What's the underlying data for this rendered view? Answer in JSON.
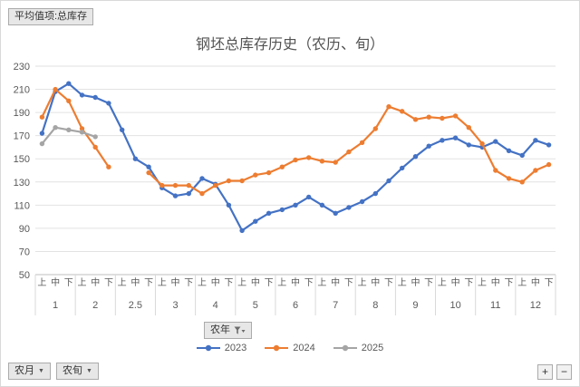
{
  "window": {
    "value_field_button": "平均值项:总库存"
  },
  "filters": {
    "year_field": "农年",
    "month_field": "农月",
    "period_field": "农旬"
  },
  "controls": {
    "dropdown": "▼",
    "plus": "+",
    "minus": "−"
  },
  "colors": {
    "grid": "#e2e2e2",
    "axis": "#bfbfbf",
    "text": "#595959",
    "separator": "#d9d9d9"
  },
  "chart_data": {
    "type": "line",
    "title": "钢坯总库存历史（农历、旬）",
    "xlabel": "",
    "ylabel": "",
    "ylim": [
      50,
      230
    ],
    "ytick": 20,
    "grid": true,
    "legend_position": "bottom",
    "categories": [
      "上",
      "中",
      "下",
      "上",
      "中",
      "下",
      "上",
      "中",
      "下",
      "上",
      "中",
      "下",
      "上",
      "中",
      "下",
      "上",
      "中",
      "下",
      "上",
      "中",
      "下",
      "上",
      "中",
      "下",
      "上",
      "中",
      "下",
      "上",
      "中",
      "下",
      "上",
      "中",
      "下",
      "上",
      "中",
      "下",
      "上",
      "中",
      "下"
    ],
    "month_groups": [
      {
        "label": "1",
        "span": 3
      },
      {
        "label": "2",
        "span": 3
      },
      {
        "label": "2.5",
        "span": 3
      },
      {
        "label": "3",
        "span": 3
      },
      {
        "label": "4",
        "span": 3
      },
      {
        "label": "5",
        "span": 3
      },
      {
        "label": "6",
        "span": 3
      },
      {
        "label": "7",
        "span": 3
      },
      {
        "label": "8",
        "span": 3
      },
      {
        "label": "9",
        "span": 3
      },
      {
        "label": "10",
        "span": 3
      },
      {
        "label": "11",
        "span": 3
      },
      {
        "label": "12",
        "span": 3
      }
    ],
    "series": [
      {
        "name": "2023",
        "color": "#4472C4",
        "values": [
          172,
          208,
          215,
          205,
          203,
          198,
          175,
          150,
          143,
          125,
          118,
          120,
          133,
          128,
          110,
          88,
          96,
          103,
          106,
          110,
          117,
          110,
          103,
          108,
          113,
          120,
          131,
          142,
          152,
          161,
          166,
          168,
          162,
          160,
          165,
          157,
          153,
          166,
          162
        ]
      },
      {
        "name": "2024",
        "color": "#ED7D31",
        "values": [
          186,
          210,
          200,
          176,
          160,
          143,
          null,
          null,
          138,
          127,
          127,
          127,
          120,
          127,
          131,
          131,
          136,
          138,
          143,
          149,
          151,
          148,
          147,
          156,
          164,
          176,
          195,
          191,
          184,
          186,
          185,
          187,
          177,
          163,
          140,
          133,
          130,
          140,
          145
        ]
      },
      {
        "name": "2025",
        "color": "#A5A5A5",
        "values": [
          163,
          177,
          175,
          173,
          169,
          null,
          null,
          null,
          null,
          null,
          null,
          null,
          null,
          null,
          null,
          null,
          null,
          null,
          null,
          null,
          null,
          null,
          null,
          null,
          null,
          null,
          null,
          null,
          null,
          null,
          null,
          null,
          null,
          null,
          null,
          null,
          null,
          null,
          null
        ]
      }
    ]
  }
}
